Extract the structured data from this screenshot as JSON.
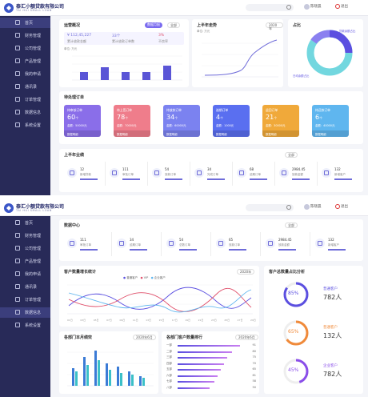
{
  "app": {
    "brand": "泰汇小额贷款有限公司",
    "brand_sub": "TAI HUI SMALL LOAN",
    "user": "陈晓晨",
    "logout": "退出"
  },
  "sidebar": {
    "items": [
      {
        "label": "首页"
      },
      {
        "label": "财务管理"
      },
      {
        "label": "公司管理"
      },
      {
        "label": "产品管理"
      },
      {
        "label": "我的申请"
      },
      {
        "label": "通讯录"
      },
      {
        "label": "订单管理"
      },
      {
        "label": "数据信息"
      },
      {
        "label": "系统设置"
      }
    ]
  },
  "screen1": {
    "overview": {
      "title": "运营概况",
      "tag": "数据月报",
      "select": "全部",
      "kpis": [
        {
          "value": "¥ 112,45,227",
          "label": "累计放款金额"
        },
        {
          "value": "33个",
          "label": "累计放款订单数"
        },
        {
          "value": "3%",
          "label": "不良率"
        }
      ],
      "axis_label": "单位: 万元"
    },
    "trend": {
      "title": "上半年走势",
      "select": "2020年",
      "unit": "单位: 万元"
    },
    "compare": {
      "title": "占比",
      "label_a": "贷款余额占比",
      "label_b": "日均余额占比"
    },
    "pending": {
      "title": "待处理订单",
      "cards": [
        {
          "title": "待审核订单",
          "num": "60",
          "unit": "个",
          "amount": "金额：50000元",
          "foot": "数据明细",
          "color": "#8a6ee9"
        },
        {
          "title": "待上签订单",
          "num": "78",
          "unit": "个",
          "amount": "金额：70000元",
          "foot": "数据明细",
          "color": "#ef7d8b"
        },
        {
          "title": "待放款订单",
          "num": "34",
          "unit": "个",
          "amount": "金额：60000元",
          "foot": "数据明细",
          "color": "#7b82f0"
        },
        {
          "title": "逾期订单",
          "num": "4",
          "unit": "个",
          "amount": "金额：1000元",
          "foot": "数据明细",
          "color": "#5a6ff0"
        },
        {
          "title": "退回订单",
          "num": "21",
          "unit": "个",
          "amount": "金额：30000元",
          "foot": "数据明细",
          "color": "#f0a93a"
        },
        {
          "title": "待还款订单",
          "num": "6",
          "unit": "个",
          "amount": "金额：40000元",
          "foot": "数据明细",
          "color": "#5fb6ef"
        }
      ]
    },
    "half": {
      "title": "上半年业绩",
      "select": "全部",
      "stats": [
        {
          "value": "12",
          "label": "新增贷款"
        },
        {
          "value": "111",
          "label": "审批订单"
        },
        {
          "value": "54",
          "label": "放款订单"
        },
        {
          "value": "34",
          "label": "完成订单"
        },
        {
          "value": "68",
          "label": "逾期订单"
        },
        {
          "value": "2984.45",
          "label": "放款金额"
        },
        {
          "value": "132",
          "label": "新增客户"
        }
      ]
    }
  },
  "screen2": {
    "data_center": {
      "title": "数据中心",
      "select": "全部",
      "stats": [
        {
          "value": "111",
          "label": "审批订单"
        },
        {
          "value": "34",
          "label": "逾期订单"
        },
        {
          "value": "54",
          "label": "总数订单"
        },
        {
          "value": "65",
          "label": "放款订单"
        },
        {
          "value": "2984.45",
          "label": "放款金额"
        },
        {
          "value": "132",
          "label": "新增客户"
        }
      ]
    },
    "growth": {
      "title": "客户数量增长统计",
      "select": "2020年",
      "legend": [
        "普通客户",
        "VIP",
        "企业客户"
      ],
      "x": [
        "01日",
        "03日",
        "05日",
        "07日",
        "09日",
        "11日",
        "13日",
        "15日",
        "17日",
        "19日",
        "21日",
        "23日",
        "25日",
        "27日",
        "29日"
      ]
    },
    "share": {
      "title": "客户总数量占比分析",
      "rings": [
        {
          "percent": "85%",
          "label": "普通客户",
          "value": "782人",
          "color": "#5b4fe0",
          "frac": 0.85
        },
        {
          "percent": "65%",
          "label": "普通客户",
          "value": "132人",
          "color": "#f08a3a",
          "frac": 0.65
        },
        {
          "percent": "45%",
          "label": "企业客户",
          "value": "782人",
          "color": "#8a4ee9",
          "frac": 0.45
        }
      ]
    },
    "branch": {
      "title": "各部门本月绩效",
      "select": "2020年6月"
    },
    "rank": {
      "title": "各部门客户数量排行",
      "select": "2020年6月",
      "rows": [
        {
          "name": "一部",
          "v": "91"
        },
        {
          "name": "二部",
          "v": "80"
        },
        {
          "name": "三部",
          "v": "75"
        },
        {
          "name": "四部",
          "v": "70"
        },
        {
          "name": "五部",
          "v": "65"
        },
        {
          "name": "六部",
          "v": "61"
        },
        {
          "name": "七部",
          "v": "58"
        },
        {
          "name": "八部",
          "v": "50"
        }
      ]
    }
  }
}
